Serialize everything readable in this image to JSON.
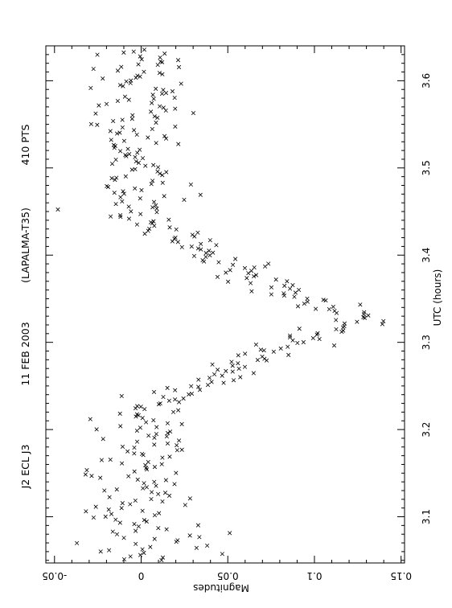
{
  "chart_data": {
    "type": "scatter",
    "orientation": "rotated-90-ccw",
    "marker": "x",
    "header": {
      "object": "J2 ECL J3",
      "date": "11 FEB 2003",
      "site": "(LAPALMA-T35)",
      "count": "410 PTS"
    },
    "xlabel": "UTC (hours)",
    "ylabel": "Magnitudes",
    "xlim": [
      3.047,
      3.64
    ],
    "ylim": [
      -0.055,
      0.152
    ],
    "y_inverted": true,
    "x_ticks": [
      "3.1",
      "3.2",
      "3.3",
      "3.4",
      "3.5",
      "3.6"
    ],
    "y_ticks": [
      "-0.05",
      "0",
      "0.05",
      "0.1",
      "0.15"
    ],
    "x_tick_values": [
      3.1,
      3.2,
      3.3,
      3.4,
      3.5,
      3.6
    ],
    "y_tick_values": [
      -0.05,
      0,
      0.05,
      0.1,
      0.15
    ],
    "series": [
      {
        "shape": "light-curve",
        "seed": 11,
        "x_range": [
          3.05,
          3.635
        ],
        "ingress": [
          3.225,
          3.285
        ],
        "minimum": 3.325,
        "egress": [
          3.37,
          3.445
        ],
        "out_of_eclipse_mag": 0.0,
        "depth": 0.13,
        "scatter": 0.02,
        "n_points": 410
      }
    ]
  }
}
